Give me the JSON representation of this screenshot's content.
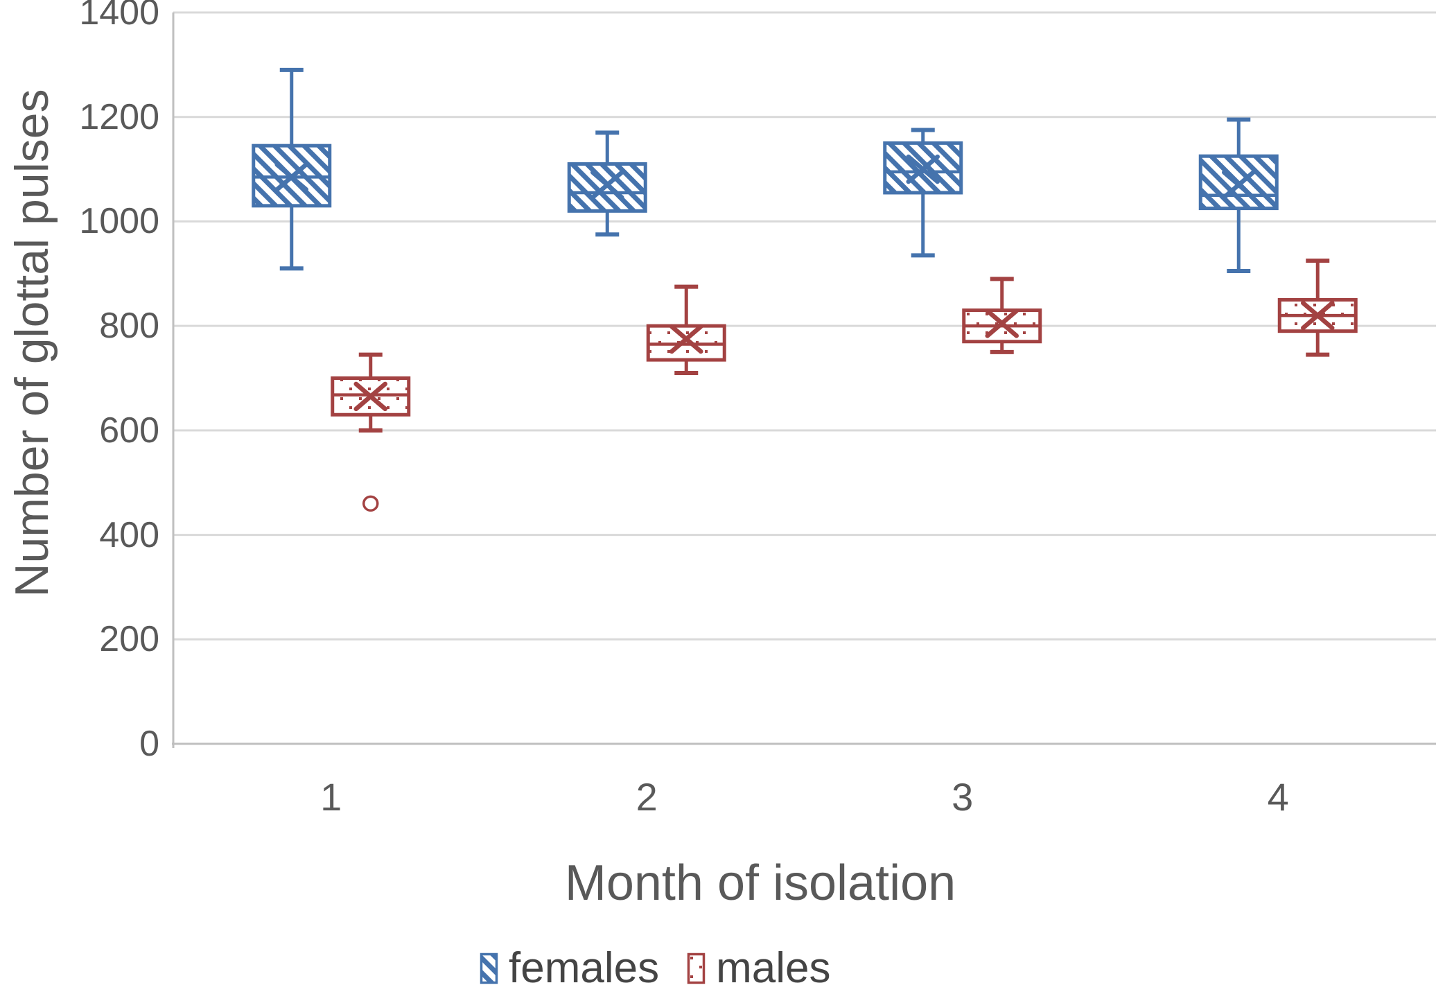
{
  "chart_data": {
    "type": "boxplot",
    "title": "",
    "xlabel": "Month of isolation",
    "ylabel": "Number of glottal pulses",
    "categories": [
      "1",
      "2",
      "3",
      "4"
    ],
    "ylim": [
      0,
      1400
    ],
    "yticks": [
      0,
      200,
      400,
      600,
      800,
      1000,
      1200,
      1400
    ],
    "grid": "horizontal",
    "legend_position": "bottom",
    "series": [
      {
        "name": "females",
        "color": "#4573AD",
        "fill_pattern": "diagonal-hatch",
        "boxes": [
          {
            "category": "1",
            "whisker_low": 910,
            "q1": 1030,
            "median": 1085,
            "mean": 1085,
            "q3": 1145,
            "whisker_high": 1290,
            "outliers": []
          },
          {
            "category": "2",
            "whisker_low": 975,
            "q1": 1020,
            "median": 1055,
            "mean": 1070,
            "q3": 1110,
            "whisker_high": 1170,
            "outliers": []
          },
          {
            "category": "3",
            "whisker_low": 935,
            "q1": 1055,
            "median": 1095,
            "mean": 1100,
            "q3": 1150,
            "whisker_high": 1175,
            "outliers": []
          },
          {
            "category": "4",
            "whisker_low": 905,
            "q1": 1025,
            "median": 1050,
            "mean": 1070,
            "q3": 1125,
            "whisker_high": 1195,
            "outliers": []
          }
        ]
      },
      {
        "name": "males",
        "color": "#A34242",
        "fill_pattern": "dots",
        "boxes": [
          {
            "category": "1",
            "whisker_low": 600,
            "q1": 630,
            "median": 668,
            "mean": 665,
            "q3": 700,
            "whisker_high": 745,
            "outliers": [
              460
            ]
          },
          {
            "category": "2",
            "whisker_low": 710,
            "q1": 735,
            "median": 765,
            "mean": 775,
            "q3": 800,
            "whisker_high": 875,
            "outliers": []
          },
          {
            "category": "3",
            "whisker_low": 750,
            "q1": 770,
            "median": 800,
            "mean": 805,
            "q3": 830,
            "whisker_high": 890,
            "outliers": []
          },
          {
            "category": "4",
            "whisker_low": 745,
            "q1": 790,
            "median": 820,
            "mean": 820,
            "q3": 850,
            "whisker_high": 925,
            "outliers": []
          }
        ]
      }
    ]
  },
  "colors": {
    "grid": "#D9D9D9",
    "axis": "#BFBFBF",
    "text": "#595959",
    "background": "#FFFFFF"
  }
}
